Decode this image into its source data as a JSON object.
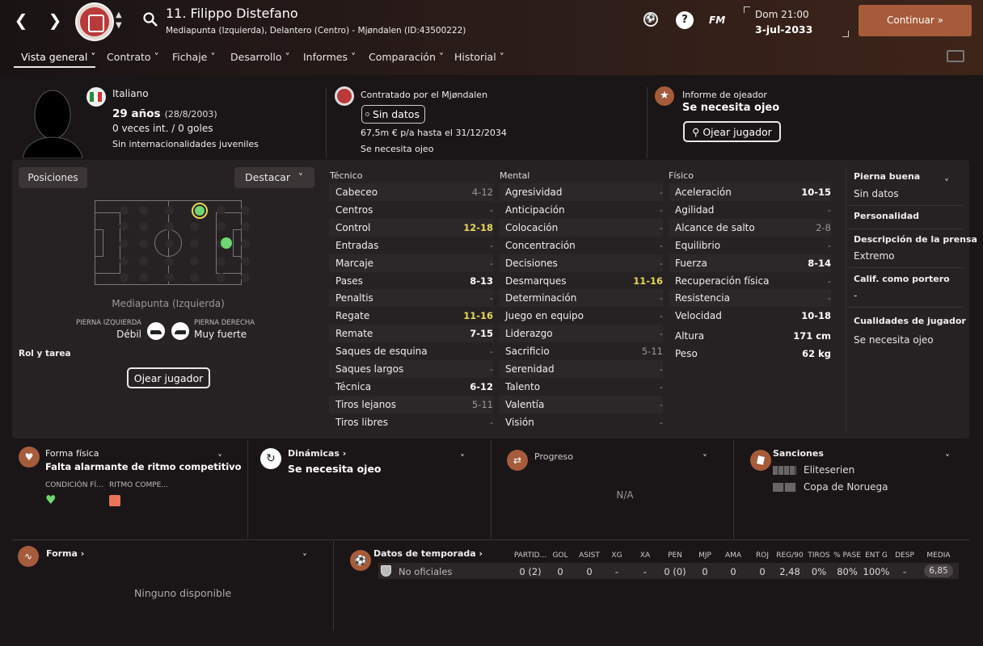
{
  "header": {
    "player_title": "11. Filippo Distefano",
    "subtitle": "Mediapunta (Izquierda), Delantero (Centro) - Mjøndalen (ID:43500222)",
    "fm_label": "FM",
    "help_label": "?",
    "day_time": "Dom 21:00",
    "date": "3-jul-2033",
    "continue_label": "Continuar"
  },
  "tabs": [
    {
      "label": "Vista general"
    },
    {
      "label": "Contrato"
    },
    {
      "label": "Fichaje"
    },
    {
      "label": "Desarrollo"
    },
    {
      "label": "Informes"
    },
    {
      "label": "Comparación"
    },
    {
      "label": "Historial"
    }
  ],
  "profile": {
    "nationality": "Italiano",
    "age": "29 años",
    "birth": "(28/8/2003)",
    "caps": "0 veces int. / 0 goles",
    "youth": "Sin internacionalidades juveniles",
    "contract_by": "Contratado por el Mjøndalen",
    "contract_status": "Sin datos",
    "salary": "67,5m € p/a hasta el 31/12/2034",
    "contract_note": "Se necesita ojeo",
    "scout_label": "Informe de ojeador",
    "scout_value": "Se necesita ojeo",
    "scout_button": "Ojear jugador"
  },
  "positions": {
    "tab_label": "Posiciones",
    "highlight_label": "Destacar",
    "position_name": "Mediapunta (Izquierda)",
    "left_foot_label": "PIERNA IZQUIERDA",
    "left_foot_value": "Débil",
    "right_foot_label": "PIERNA DERECHA",
    "right_foot_value": "Muy fuerte",
    "role_label": "Rol y tarea",
    "scout_button": "Ojear jugador"
  },
  "attributes": {
    "technical_title": "Técnico",
    "mental_title": "Mental",
    "physical_title": "Físico",
    "technical": [
      {
        "name": "Cabeceo",
        "value": "4-12",
        "style": "g"
      },
      {
        "name": "Centros",
        "value": "-",
        "style": "d"
      },
      {
        "name": "Control",
        "value": "12-18",
        "style": "y"
      },
      {
        "name": "Entradas",
        "value": "-",
        "style": "d"
      },
      {
        "name": "Marcaje",
        "value": "-",
        "style": "d"
      },
      {
        "name": "Pases",
        "value": "8-13",
        "style": "w"
      },
      {
        "name": "Penaltis",
        "value": "-",
        "style": "d"
      },
      {
        "name": "Regate",
        "value": "11-16",
        "style": "y"
      },
      {
        "name": "Remate",
        "value": "7-15",
        "style": "w"
      },
      {
        "name": "Saques de esquina",
        "value": "-",
        "style": "d"
      },
      {
        "name": "Saques largos",
        "value": "-",
        "style": "d"
      },
      {
        "name": "Técnica",
        "value": "6-12",
        "style": "w"
      },
      {
        "name": "Tiros lejanos",
        "value": "5-11",
        "style": "g"
      },
      {
        "name": "Tiros libres",
        "value": "-",
        "style": "d"
      }
    ],
    "mental": [
      {
        "name": "Agresividad",
        "value": "-",
        "style": "d"
      },
      {
        "name": "Anticipación",
        "value": "-",
        "style": "d"
      },
      {
        "name": "Colocación",
        "value": "-",
        "style": "d"
      },
      {
        "name": "Concentración",
        "value": "-",
        "style": "d"
      },
      {
        "name": "Decisiones",
        "value": "-",
        "style": "d"
      },
      {
        "name": "Desmarques",
        "value": "11-16",
        "style": "y"
      },
      {
        "name": "Determinación",
        "value": "-",
        "style": "d"
      },
      {
        "name": "Juego en equipo",
        "value": "-",
        "style": "d"
      },
      {
        "name": "Liderazgo",
        "value": "-",
        "style": "d"
      },
      {
        "name": "Sacrificio",
        "value": "5-11",
        "style": "g"
      },
      {
        "name": "Serenidad",
        "value": "-",
        "style": "d"
      },
      {
        "name": "Talento",
        "value": "-",
        "style": "d"
      },
      {
        "name": "Valentía",
        "value": "-",
        "style": "d"
      },
      {
        "name": "Visión",
        "value": "-",
        "style": "d"
      }
    ],
    "physical": [
      {
        "name": "Aceleración",
        "value": "10-15",
        "style": "w"
      },
      {
        "name": "Agilidad",
        "value": "-",
        "style": "d"
      },
      {
        "name": "Alcance de salto",
        "value": "2-8",
        "style": "g"
      },
      {
        "name": "Equilibrio",
        "value": "-",
        "style": "d"
      },
      {
        "name": "Fuerza",
        "value": "8-14",
        "style": "w"
      },
      {
        "name": "Recuperación física",
        "value": "-",
        "style": "d"
      },
      {
        "name": "Resistencia",
        "value": "-",
        "style": "d"
      },
      {
        "name": "Velocidad",
        "value": "10-18",
        "style": "w"
      }
    ],
    "height_label": "Altura",
    "height_value": "171 cm",
    "weight_label": "Peso",
    "weight_value": "62 kg"
  },
  "side": {
    "good_foot_label": "Pierna buena",
    "good_foot_value": "Sin datos",
    "personality_label": "Personalidad",
    "press_label": "Descripción de la prensa",
    "press_value": "Extremo",
    "gk_label": "Calif. como portero",
    "gk_value": "-",
    "qualities_label": "Cualidades de jugador",
    "qualities_value": "Se necesita ojeo"
  },
  "cards": {
    "fitness_title": "Forma física",
    "fitness_value": "Falta alarmante de ritmo competitivo",
    "condition_label": "CONDICIÓN FÍ...",
    "rhythm_label": "RITMO COMPE...",
    "dynamics_title": "Dinámicas",
    "dynamics_value": "Se necesita ojeo",
    "progress_title": "Progreso",
    "progress_value": "N/A",
    "sanctions_title": "Sanciones",
    "sanction_1": "Eliteserien",
    "sanction_2": "Copa de Noruega",
    "form_title": "Forma",
    "form_value": "Ninguno disponible",
    "season_title": "Datos de temporada"
  },
  "season": {
    "headers": [
      "PARTID...",
      "GOL",
      "ASIST",
      "XG",
      "XA",
      "PEN",
      "MJP",
      "AMA",
      "ROJ",
      "REG/90",
      "TIROS",
      "% PASE",
      "ENT G",
      "DESP",
      "MEDIA"
    ],
    "row_label": "No oficiales",
    "values": [
      "0 (2)",
      "0",
      "0",
      "-",
      "-",
      "0 (0)",
      "0",
      "0",
      "0",
      "2,48",
      "0%",
      "80%",
      "100%",
      "-",
      "6,85"
    ]
  },
  "colors": {
    "accent": "#a65b3a",
    "good": "#6fd672",
    "highlight": "#e8d85a"
  }
}
